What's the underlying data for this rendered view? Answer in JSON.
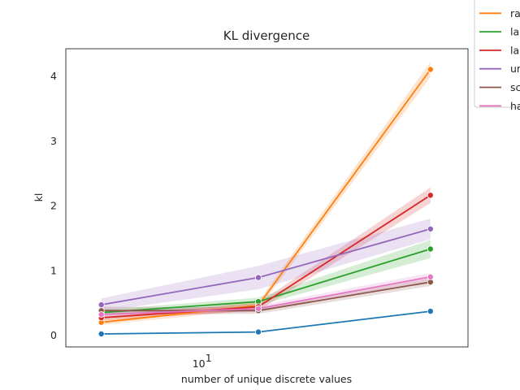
{
  "chart_data": {
    "type": "line",
    "title": "KL divergence",
    "xlabel": "number of unique discrete values",
    "ylabel": "kl",
    "x_scale": "log",
    "x": [
      5,
      15,
      50
    ],
    "x_tick_labels": [
      {
        "value": 10,
        "base": "10",
        "exp": "1"
      }
    ],
    "ylim": [
      -0.18,
      4.42
    ],
    "y_ticks": [
      0,
      1,
      2,
      3,
      4
    ],
    "grid": false,
    "legend_position": "outside-top-right",
    "series": [
      {
        "name": "",
        "color": "#1f77b4",
        "values": [
          0.02,
          0.05,
          0.37
        ],
        "band": [
          0.01,
          0.01,
          0.01
        ]
      },
      {
        "name": "ra",
        "color": "#ff7f0e",
        "values": [
          0.2,
          0.46,
          4.1
        ],
        "band": [
          0.04,
          0.06,
          0.12
        ]
      },
      {
        "name": "la",
        "color": "#2ca02c",
        "values": [
          0.35,
          0.52,
          1.33
        ],
        "band": [
          0.04,
          0.06,
          0.14
        ]
      },
      {
        "name": "la",
        "color": "#d62728",
        "values": [
          0.27,
          0.44,
          2.16
        ],
        "band": [
          0.04,
          0.06,
          0.12
        ]
      },
      {
        "name": "ur",
        "color": "#9467bd",
        "values": [
          0.47,
          0.89,
          1.64
        ],
        "band": [
          0.1,
          0.18,
          0.16
        ]
      },
      {
        "name": "sc",
        "color": "#8c564b",
        "values": [
          0.38,
          0.38,
          0.82
        ],
        "band": [
          0.06,
          0.05,
          0.06
        ]
      },
      {
        "name": "ha",
        "color": "#e377c2",
        "values": [
          0.32,
          0.41,
          0.9
        ],
        "band": [
          0.04,
          0.05,
          0.06
        ]
      }
    ]
  }
}
